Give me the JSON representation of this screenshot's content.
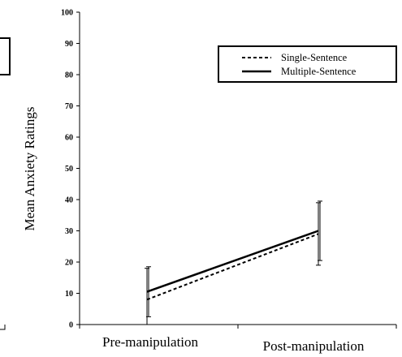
{
  "chart_data": {
    "type": "line",
    "title": "",
    "xlabel": "",
    "ylabel": "Mean Anxiety Ratings",
    "categories": [
      "Pre-manipulation",
      "Post-manipulation"
    ],
    "ylim": [
      0,
      100
    ],
    "yticks": [
      0,
      10,
      20,
      30,
      40,
      50,
      60,
      70,
      80,
      90,
      100
    ],
    "grid": false,
    "legend_position": "top-right",
    "series": [
      {
        "name": "Single-Sentence",
        "style": "dashed",
        "color": "#000000",
        "values": [
          8,
          29
        ],
        "error": [
          10,
          10
        ]
      },
      {
        "name": "Multiple-Sentence",
        "style": "solid",
        "color": "#000000",
        "values": [
          10.5,
          30
        ],
        "error": [
          8,
          9.5
        ]
      }
    ]
  }
}
